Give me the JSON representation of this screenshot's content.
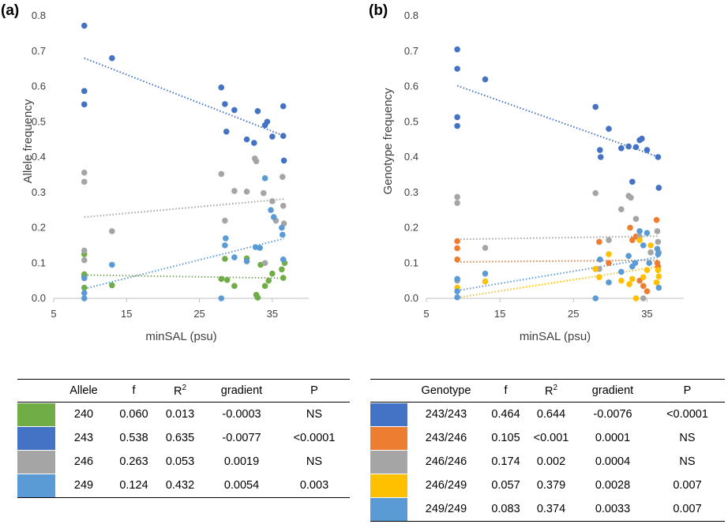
{
  "chart_data": [
    {
      "panel": "(a)",
      "type": "scatter",
      "xlabel": "minSAL (psu)",
      "ylabel": "Allele frequency",
      "xlim": [
        5,
        40
      ],
      "ylim": [
        0,
        0.8
      ],
      "xticks": [
        "5",
        "15",
        "25",
        "35"
      ],
      "yticks": [
        "0.0",
        "0.1",
        "0.2",
        "0.3",
        "0.4",
        "0.5",
        "0.6",
        "0.7",
        "0.8"
      ],
      "series": [
        {
          "name": "240",
          "color": "#70ad47",
          "trend": [
            0.066,
            0.057
          ],
          "points": [
            [
              9.2,
              0.125
            ],
            [
              9.2,
              0.068
            ],
            [
              9.2,
              0.063
            ],
            [
              9.2,
              0.03
            ],
            [
              13,
              0.037
            ],
            [
              28,
              0.055
            ],
            [
              28.5,
              0.112
            ],
            [
              28.8,
              0.052
            ],
            [
              29.8,
              0.035
            ],
            [
              31.5,
              0.113
            ],
            [
              32.8,
              0.01
            ],
            [
              33,
              0.002
            ],
            [
              33.4,
              0.095
            ],
            [
              34,
              0.035
            ],
            [
              34.5,
              0.05
            ],
            [
              35,
              0.07
            ],
            [
              36.3,
              0.082
            ],
            [
              36.5,
              0.058
            ],
            [
              36.7,
              0.1
            ]
          ]
        },
        {
          "name": "243",
          "color": "#4472c4",
          "trend": [
            0.68,
            0.46
          ],
          "points": [
            [
              9.2,
              0.772
            ],
            [
              9.2,
              0.587
            ],
            [
              9.2,
              0.549
            ],
            [
              13,
              0.68
            ],
            [
              28,
              0.597
            ],
            [
              28.5,
              0.55
            ],
            [
              28.7,
              0.472
            ],
            [
              29.8,
              0.533
            ],
            [
              31.5,
              0.45
            ],
            [
              32.5,
              0.44
            ],
            [
              33,
              0.53
            ],
            [
              34,
              0.49
            ],
            [
              34.3,
              0.5
            ],
            [
              35,
              0.458
            ],
            [
              36.5,
              0.544
            ],
            [
              36.5,
              0.46
            ],
            [
              36.6,
              0.39
            ]
          ]
        },
        {
          "name": "246",
          "color": "#a5a5a5",
          "trend": [
            0.23,
            0.281
          ],
          "points": [
            [
              9.2,
              0.356
            ],
            [
              9.2,
              0.33
            ],
            [
              9.2,
              0.135
            ],
            [
              9.2,
              0.108
            ],
            [
              13,
              0.19
            ],
            [
              28,
              0.352
            ],
            [
              28.5,
              0.22
            ],
            [
              29.8,
              0.304
            ],
            [
              31.5,
              0.302
            ],
            [
              32.6,
              0.396
            ],
            [
              32.8,
              0.388
            ],
            [
              33.8,
              0.298
            ],
            [
              34,
              0.1
            ],
            [
              35,
              0.275
            ],
            [
              35.5,
              0.22
            ],
            [
              36.4,
              0.344
            ],
            [
              36.5,
              0.262
            ],
            [
              36.6,
              0.212
            ]
          ]
        },
        {
          "name": "249",
          "color": "#5b9bd5",
          "trend": [
            0.027,
            0.169
          ],
          "points": [
            [
              9.2,
              0.057
            ],
            [
              9.2,
              0.015
            ],
            [
              9.2,
              0.0
            ],
            [
              13,
              0.095
            ],
            [
              28,
              0.0
            ],
            [
              28.5,
              0.15
            ],
            [
              28.6,
              0.17
            ],
            [
              29.8,
              0.116
            ],
            [
              31.5,
              0.105
            ],
            [
              32.7,
              0.145
            ],
            [
              33.3,
              0.143
            ],
            [
              34,
              0.34
            ],
            [
              34.8,
              0.25
            ],
            [
              35.2,
              0.23
            ],
            [
              36.3,
              0.2
            ],
            [
              36.4,
              0.18
            ],
            [
              36.5,
              0.11
            ]
          ]
        }
      ]
    },
    {
      "panel": "(b)",
      "type": "scatter",
      "xlabel": "minSAL (psu)",
      "ylabel": "Genotype frequency",
      "xlim": [
        5,
        40
      ],
      "ylim": [
        0,
        0.8
      ],
      "xticks": [
        "5",
        "15",
        "25",
        "35"
      ],
      "yticks": [
        "0.0",
        "0.1",
        "0.2",
        "0.3",
        "0.4",
        "0.5",
        "0.6",
        "0.7",
        "0.8"
      ],
      "series": [
        {
          "name": "243/243",
          "color": "#4472c4",
          "trend": [
            0.602,
            0.4
          ],
          "points": [
            [
              9.2,
              0.705
            ],
            [
              9.2,
              0.65
            ],
            [
              9.2,
              0.513
            ],
            [
              9.2,
              0.488
            ],
            [
              13,
              0.62
            ],
            [
              28,
              0.542
            ],
            [
              28.6,
              0.42
            ],
            [
              28.7,
              0.4
            ],
            [
              29.8,
              0.48
            ],
            [
              31.5,
              0.425
            ],
            [
              32.5,
              0.43
            ],
            [
              33,
              0.33
            ],
            [
              33.5,
              0.428
            ],
            [
              34,
              0.448
            ],
            [
              34.3,
              0.452
            ],
            [
              35,
              0.42
            ],
            [
              36.5,
              0.4
            ],
            [
              36.6,
              0.313
            ]
          ]
        },
        {
          "name": "243/246",
          "color": "#ed7d31",
          "trend": [
            0.103,
            0.108
          ],
          "points": [
            [
              9.2,
              0.162
            ],
            [
              9.2,
              0.142
            ],
            [
              9.2,
              0.11
            ],
            [
              28,
              0.083
            ],
            [
              28.5,
              0.16
            ],
            [
              29.8,
              0.1
            ],
            [
              32.7,
              0.2
            ],
            [
              33,
              0.165
            ],
            [
              33.5,
              0.175
            ],
            [
              34,
              0.05
            ],
            [
              34.5,
              0.035
            ],
            [
              35,
              0.02
            ],
            [
              36.3,
              0.222
            ],
            [
              36.4,
              0.1
            ],
            [
              36.5,
              0.09
            ]
          ]
        },
        {
          "name": "246/246",
          "color": "#a5a5a5",
          "trend": [
            0.167,
            0.176
          ],
          "points": [
            [
              9.2,
              0.287
            ],
            [
              9.2,
              0.27
            ],
            [
              9.2,
              0.05
            ],
            [
              13,
              0.143
            ],
            [
              28,
              0.298
            ],
            [
              28.5,
              0.083
            ],
            [
              29.8,
              0.165
            ],
            [
              31.5,
              0.252
            ],
            [
              32.5,
              0.29
            ],
            [
              32.8,
              0.285
            ],
            [
              33.5,
              0.225
            ],
            [
              34,
              0.175
            ],
            [
              34.5,
              0.0
            ],
            [
              35.5,
              0.13
            ],
            [
              36.4,
              0.19
            ],
            [
              36.5,
              0.16
            ],
            [
              36.6,
              0.13
            ]
          ]
        },
        {
          "name": "246/249",
          "color": "#ffc000",
          "trend": [
            0.002,
            0.09
          ],
          "points": [
            [
              9.2,
              0.03
            ],
            [
              13,
              0.048
            ],
            [
              28,
              0.083
            ],
            [
              28.5,
              0.06
            ],
            [
              29.8,
              0.125
            ],
            [
              31.5,
              0.05
            ],
            [
              32.6,
              0.04
            ],
            [
              33,
              0.055
            ],
            [
              33.5,
              0.0
            ],
            [
              34,
              0.165
            ],
            [
              34.5,
              0.06
            ],
            [
              35,
              0.08
            ],
            [
              35.5,
              0.15
            ],
            [
              36.3,
              0.045
            ],
            [
              36.5,
              0.08
            ],
            [
              36.6,
              0.062
            ]
          ]
        },
        {
          "name": "249/249",
          "color": "#5b9bd5",
          "trend": [
            0.022,
            0.117
          ],
          "points": [
            [
              9.2,
              0.055
            ],
            [
              9.2,
              0.02
            ],
            [
              9.2,
              0.003
            ],
            [
              13,
              0.07
            ],
            [
              28,
              0.0
            ],
            [
              28.6,
              0.11
            ],
            [
              29.8,
              0.045
            ],
            [
              31.5,
              0.075
            ],
            [
              32.5,
              0.12
            ],
            [
              33,
              0.09
            ],
            [
              33.4,
              0.1
            ],
            [
              34,
              0.19
            ],
            [
              34.5,
              0.15
            ],
            [
              35,
              0.185
            ],
            [
              35.3,
              0.1
            ],
            [
              36.4,
              0.14
            ],
            [
              36.5,
              0.125
            ],
            [
              36.6,
              0.03
            ]
          ]
        }
      ]
    }
  ],
  "table_a": {
    "headers": [
      "",
      "Allele",
      "f",
      "R2",
      "gradient",
      "P"
    ],
    "rows": [
      {
        "color": "#70ad47",
        "label": "240",
        "f": "0.060",
        "r2": "0.013",
        "gradient": "-0.0003",
        "p": "NS"
      },
      {
        "color": "#4472c4",
        "label": "243",
        "f": "0.538",
        "r2": "0.635",
        "gradient": "-0.0077",
        "p": "<0.0001"
      },
      {
        "color": "#a5a5a5",
        "label": "246",
        "f": "0.263",
        "r2": "0.053",
        "gradient": "0.0019",
        "p": "NS"
      },
      {
        "color": "#5b9bd5",
        "label": "249",
        "f": "0.124",
        "r2": "0.432",
        "gradient": "0.0054",
        "p": "0.003"
      }
    ]
  },
  "table_b": {
    "headers": [
      "",
      "Genotype",
      "f",
      "R2",
      "gradient",
      "P"
    ],
    "rows": [
      {
        "color": "#4472c4",
        "label": "243/243",
        "f": "0.464",
        "r2": "0.644",
        "gradient": "-0.0076",
        "p": "<0.0001"
      },
      {
        "color": "#ed7d31",
        "label": "243/246",
        "f": "0.105",
        "r2": "<0.001",
        "gradient": "0.0001",
        "p": "NS"
      },
      {
        "color": "#a5a5a5",
        "label": "246/246",
        "f": "0.174",
        "r2": "0.002",
        "gradient": "0.0004",
        "p": "NS"
      },
      {
        "color": "#ffc000",
        "label": "246/249",
        "f": "0.057",
        "r2": "0.379",
        "gradient": "0.0028",
        "p": "0.007"
      },
      {
        "color": "#5b9bd5",
        "label": "249/249",
        "f": "0.083",
        "r2": "0.374",
        "gradient": "0.0033",
        "p": "0.007"
      }
    ]
  }
}
